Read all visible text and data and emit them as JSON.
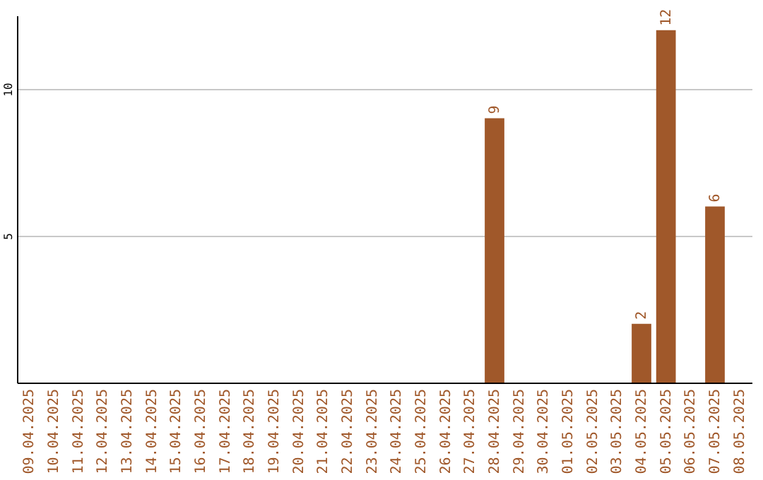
{
  "chart_data": {
    "type": "bar",
    "categories": [
      "09.04.2025",
      "10.04.2025",
      "11.04.2025",
      "12.04.2025",
      "13.04.2025",
      "14.04.2025",
      "15.04.2025",
      "16.04.2025",
      "17.04.2025",
      "18.04.2025",
      "19.04.2025",
      "20.04.2025",
      "21.04.2025",
      "22.04.2025",
      "23.04.2025",
      "24.04.2025",
      "25.04.2025",
      "26.04.2025",
      "27.04.2025",
      "28.04.2025",
      "29.04.2025",
      "30.04.2025",
      "01.05.2025",
      "02.05.2025",
      "03.05.2025",
      "04.05.2025",
      "05.05.2025",
      "06.05.2025",
      "07.05.2025",
      "08.05.2025"
    ],
    "values": [
      null,
      null,
      null,
      null,
      null,
      null,
      null,
      null,
      null,
      null,
      null,
      null,
      null,
      null,
      null,
      null,
      null,
      null,
      null,
      9,
      null,
      null,
      null,
      null,
      null,
      2,
      12,
      null,
      6,
      null
    ],
    "color": "#a0582a",
    "ylim": [
      0,
      12.5
    ],
    "yticks": [
      5,
      10
    ],
    "grid": "y",
    "data_labels": true
  }
}
